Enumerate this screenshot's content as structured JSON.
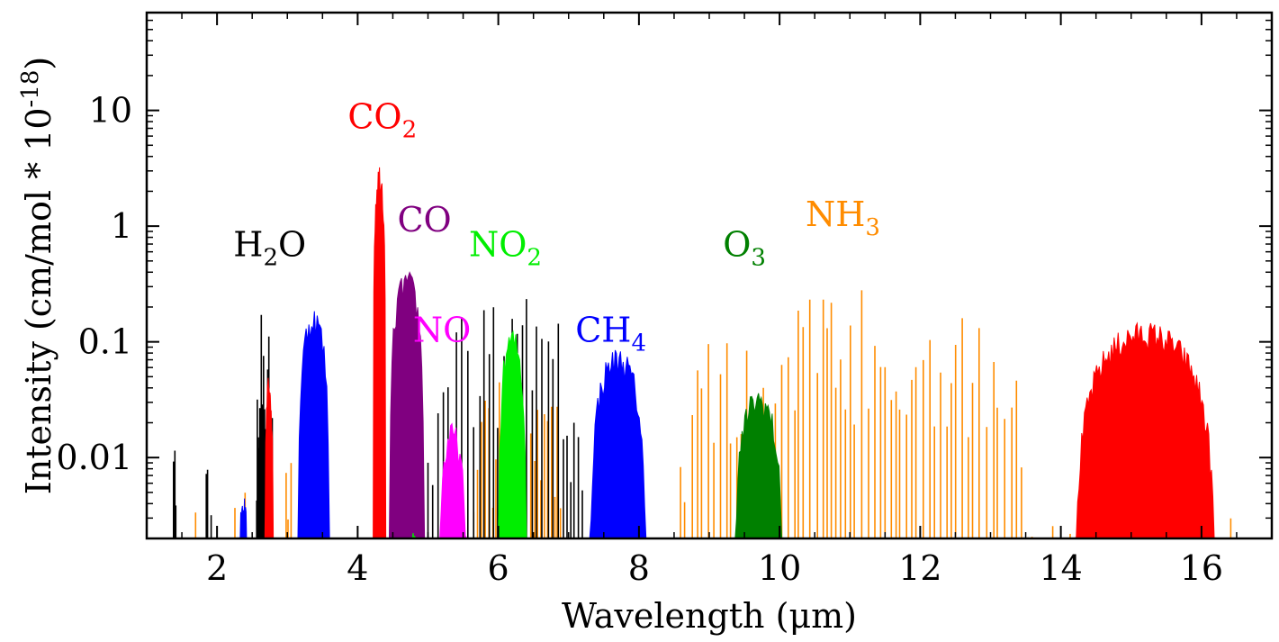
{
  "chart_data": {
    "type": "line",
    "title": "",
    "xlabel": "Wavelength (μm)",
    "ylabel": "Intensity (cm/mol * 10",
    "ylabel_sup": "-18",
    "ylabel_end": ")",
    "xlim": [
      1.0,
      17.0
    ],
    "ylim": [
      0.002,
      70
    ],
    "yscale": "log",
    "grid": false,
    "legend": "none",
    "x_ticks": [
      2,
      4,
      6,
      8,
      10,
      12,
      14,
      16
    ],
    "x_tick_labels": [
      "2",
      "4",
      "6",
      "8",
      "10",
      "12",
      "14",
      "16"
    ],
    "y_ticks": [
      0.01,
      0.1,
      1,
      10
    ],
    "y_tick_labels": [
      "0.01",
      "0.1",
      "1",
      "10"
    ],
    "species_labels": [
      {
        "base": "H",
        "sub": "2",
        "rest": "O",
        "color": "#000000",
        "x": 2.75,
        "y": 0.55
      },
      {
        "base": "CO",
        "sub": "2",
        "rest": "",
        "color": "#ff0000",
        "x": 4.35,
        "y": 7.0
      },
      {
        "base": "CO",
        "sub": "",
        "rest": "",
        "color": "#800080",
        "x": 4.95,
        "y": 0.9
      },
      {
        "base": "NO",
        "sub": "",
        "rest": "",
        "color": "#ff00ff",
        "x": 5.2,
        "y": 0.1
      },
      {
        "base": "NO",
        "sub": "2",
        "rest": "",
        "color": "#00ee00",
        "x": 6.1,
        "y": 0.55
      },
      {
        "base": "CH",
        "sub": "4",
        "rest": "",
        "color": "#0000ff",
        "x": 7.6,
        "y": 0.1
      },
      {
        "base": "O",
        "sub": "3",
        "rest": "",
        "color": "#008000",
        "x": 9.5,
        "y": 0.55
      },
      {
        "base": "NH",
        "sub": "3",
        "rest": "",
        "color": "#ff8c00",
        "x": 10.9,
        "y": 1.0
      }
    ],
    "series": [
      {
        "name": "NH3",
        "color": "#ff8c00",
        "fill": false,
        "bands": [
          {
            "x": [
              1.6,
              1.9
            ],
            "peak": 0.004,
            "spacing": 0.05
          },
          {
            "x": [
              2.2,
              2.5
            ],
            "peak": 0.013,
            "spacing": 0.04
          },
          {
            "x": [
              2.85,
              3.15
            ],
            "peak": 0.02,
            "spacing": 0.04
          },
          {
            "x": [
              5.6,
              7.0
            ],
            "peak": 0.07,
            "spacing": 0.05
          },
          {
            "x": [
              8.5,
              13.6
            ],
            "peak": 0.3,
            "spacing": 0.08
          },
          {
            "x": [
              13.6,
              16.7
            ],
            "peak": 0.01,
            "spacing": 0.12
          }
        ]
      },
      {
        "name": "H2O",
        "color": "#000000",
        "fill": false,
        "bands": [
          {
            "x": [
              1.36,
              1.42
            ],
            "peak": 0.018,
            "spacing": 0.02
          },
          {
            "x": [
              1.82,
              1.92
            ],
            "peak": 0.028,
            "spacing": 0.02
          },
          {
            "x": [
              2.55,
              2.8
            ],
            "peak": 0.24,
            "spacing": 0.015
          },
          {
            "x": [
              5.0,
              7.2
            ],
            "peak": 0.28,
            "spacing": 0.07
          },
          {
            "x": [
              14.4,
              16.8
            ],
            "peak": 0.004,
            "spacing": 0.3
          }
        ]
      },
      {
        "name": "CO2",
        "color": "#ff0000",
        "fill": true,
        "bands": [
          {
            "x": [
              2.68,
              2.8
            ],
            "peak": 0.055,
            "spacing": 0.01
          },
          {
            "x": [
              4.22,
              4.4
            ],
            "peak": 3.5,
            "spacing": 0.01
          },
          {
            "x": [
              14.2,
              16.2
            ],
            "peak": 0.15,
            "spacing": 0.025
          }
        ]
      },
      {
        "name": "CO",
        "color": "#800080",
        "fill": true,
        "bands": [
          {
            "x": [
              4.45,
              4.95
            ],
            "peak": 0.42,
            "spacing": 0.01
          }
        ]
      },
      {
        "name": "NO",
        "color": "#ff00ff",
        "fill": true,
        "bands": [
          {
            "x": [
              5.15,
              5.55
            ],
            "peak": 0.02,
            "spacing": 0.01
          }
        ]
      },
      {
        "name": "NO2",
        "color": "#00ee00",
        "fill": true,
        "bands": [
          {
            "x": [
              6.0,
              6.4
            ],
            "peak": 0.13,
            "spacing": 0.01
          },
          {
            "x": [
              4.75,
              4.85
            ],
            "peak": 0.003,
            "spacing": 0.02
          }
        ]
      },
      {
        "name": "CH4",
        "color": "#0000ff",
        "fill": true,
        "bands": [
          {
            "x": [
              2.3,
              2.45
            ],
            "peak": 0.005,
            "spacing": 0.01
          },
          {
            "x": [
              3.15,
              3.6
            ],
            "peak": 0.2,
            "spacing": 0.01
          },
          {
            "x": [
              7.3,
              8.1
            ],
            "peak": 0.09,
            "spacing": 0.02
          }
        ]
      },
      {
        "name": "O3",
        "color": "#008000",
        "fill": true,
        "bands": [
          {
            "x": [
              9.35,
              10.05
            ],
            "peak": 0.04,
            "spacing": 0.01
          }
        ]
      }
    ]
  }
}
